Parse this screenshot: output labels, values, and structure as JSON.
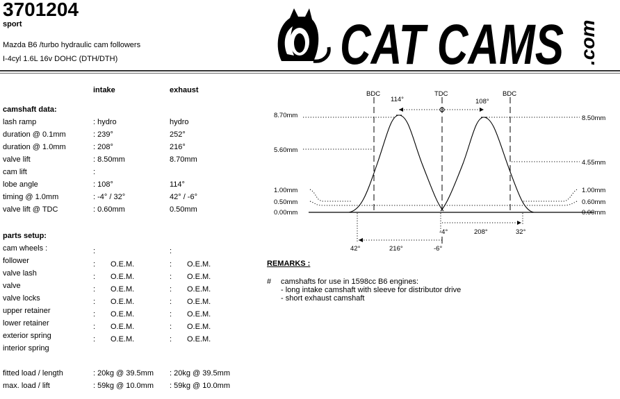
{
  "header": {
    "part_number": "3701204",
    "variant": "sport",
    "desc1": "Mazda B6 /turbo hydraulic cam followers",
    "desc2": "I-4cyl 1.6L 16v DOHC (DTH/DTH)",
    "logo_text": "CAT CAMS",
    "logo_suffix": ".com"
  },
  "columns": {
    "intake": "intake",
    "exhaust": "exhaust"
  },
  "camshaft": {
    "title": "camshaft data:",
    "rows": [
      {
        "label": "lash ramp",
        "intake": ": hydro",
        "exhaust": "hydro"
      },
      {
        "label": "duration @ 0.1mm",
        "intake": ": 239°",
        "exhaust": "252°"
      },
      {
        "label": "duration @ 1.0mm",
        "intake": ": 208°",
        "exhaust": "216°"
      },
      {
        "label": "valve lift",
        "intake": ": 8.50mm",
        "exhaust": "8.70mm"
      },
      {
        "label": "cam lift",
        "intake": ":",
        "exhaust": ""
      },
      {
        "label": "lobe angle",
        "intake": ": 108°",
        "exhaust": "114°"
      },
      {
        "label": "timing @ 1.0mm",
        "intake": ": -4° / 32°",
        "exhaust": "42° / -6°"
      },
      {
        "label": "valve lift @ TDC",
        "intake": ": 0.60mm",
        "exhaust": "0.50mm"
      }
    ]
  },
  "parts": {
    "title": "parts setup:",
    "rows": [
      {
        "label": "cam wheels :",
        "intake": "",
        "exhaust": ""
      },
      {
        "label": "follower",
        "intake": "O.E.M.",
        "exhaust": "O.E.M."
      },
      {
        "label": "valve lash",
        "intake": "O.E.M.",
        "exhaust": "O.E.M."
      },
      {
        "label": "valve",
        "intake": "O.E.M.",
        "exhaust": "O.E.M."
      },
      {
        "label": "valve locks",
        "intake": "O.E.M.",
        "exhaust": "O.E.M."
      },
      {
        "label": "upper retainer",
        "intake": "O.E.M.",
        "exhaust": "O.E.M."
      },
      {
        "label": "lower retainer",
        "intake": "O.E.M.",
        "exhaust": "O.E.M."
      },
      {
        "label": "exterior spring",
        "intake": "O.E.M.",
        "exhaust": "O.E.M."
      },
      {
        "label": "interior spring",
        "intake": "",
        "exhaust": ""
      }
    ]
  },
  "loads": [
    {
      "label": "fitted load / length",
      "intake": ": 20kg @ 39.5mm",
      "exhaust": ": 20kg @ 39.5mm"
    },
    {
      "label": "max. load / lift",
      "intake": ": 59kg @ 10.0mm",
      "exhaust": ": 59kg @ 10.0mm"
    }
  ],
  "diagram": {
    "markers": {
      "bdc_left": "BDC",
      "tdc": "TDC",
      "bdc_right": "BDC"
    },
    "left_axis": [
      "8.70mm",
      "5.60mm",
      "1.00mm",
      "0.50mm",
      "0.00mm"
    ],
    "right_axis": [
      "8.50mm",
      "4.55mm",
      "1.00mm",
      "0.60mm",
      "0.00mm"
    ],
    "lobe_exhaust": "114°",
    "lobe_intake": "108°",
    "intake_open": "-4°",
    "intake_duration": "208°",
    "intake_close": "32°",
    "exhaust_open": "42°",
    "exhaust_duration": "216°",
    "exhaust_close": "-6°"
  },
  "remarks": {
    "title": "REMARKS :",
    "bullet": "#",
    "line1": "camshafts for use in 1598cc B6 engines:",
    "line2": "- long intake camshaft with sleeve for distributor drive",
    "line3": "- short exhaust camshaft"
  }
}
